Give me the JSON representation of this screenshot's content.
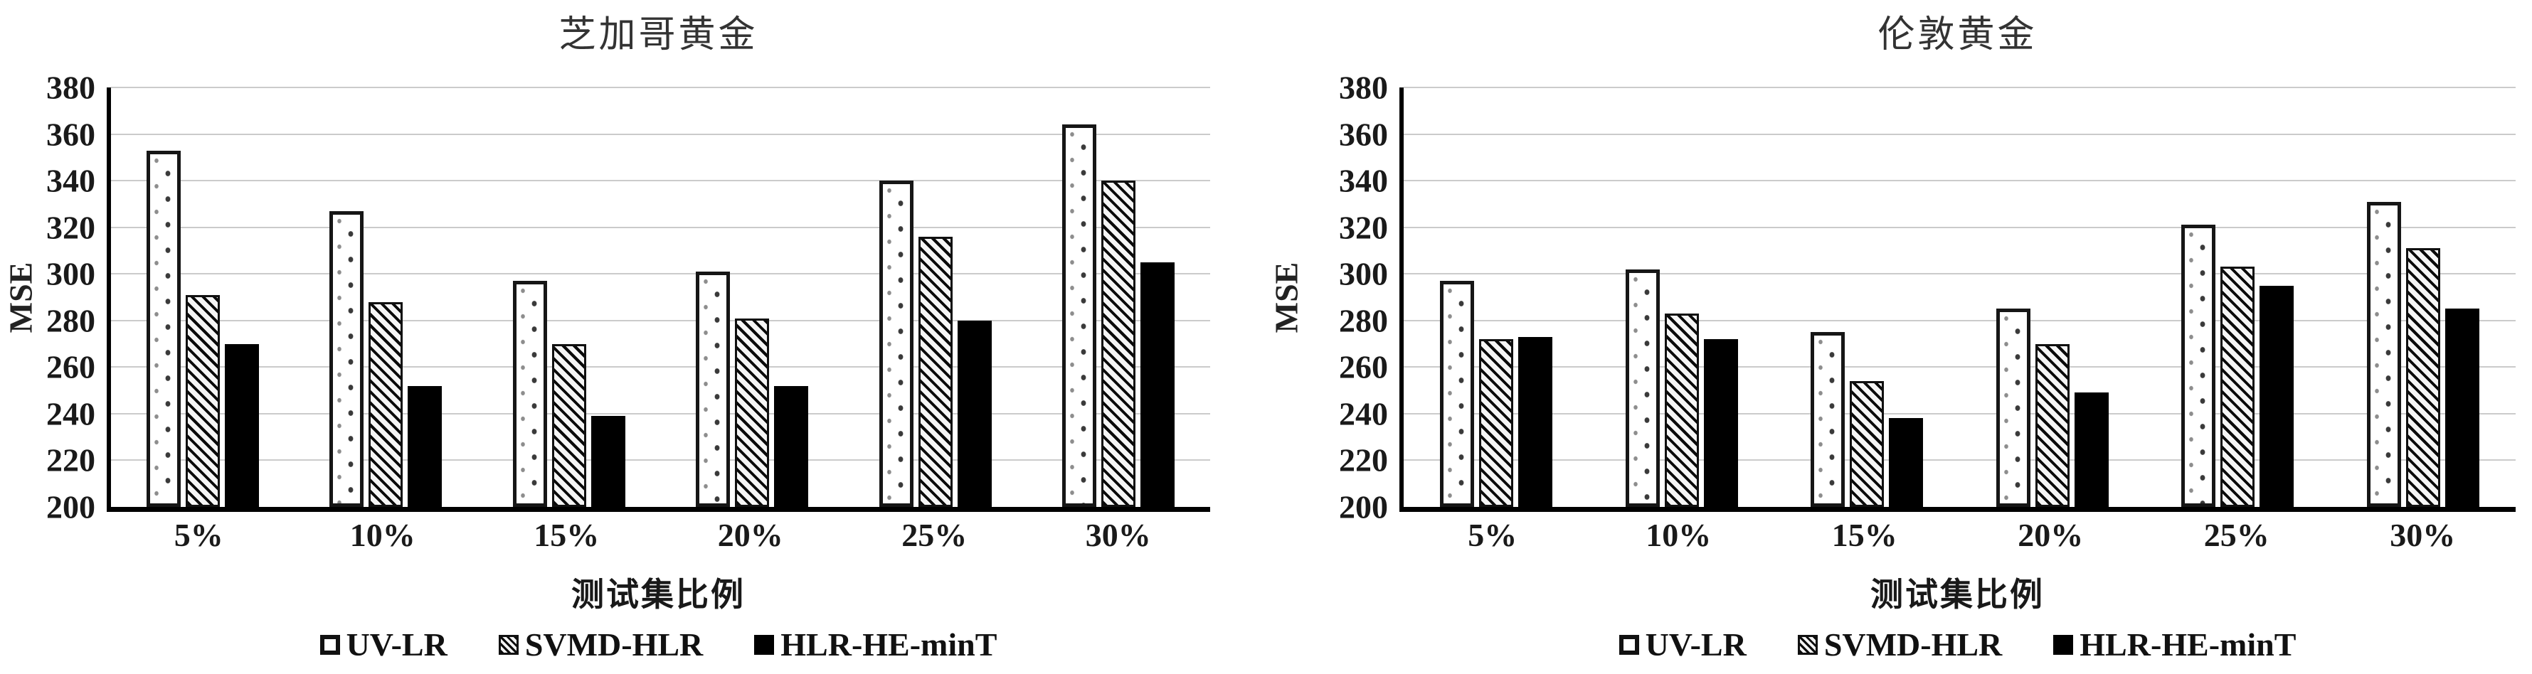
{
  "colors": {
    "background": "#ffffff",
    "axis": "#000000",
    "gridline": "#cbcbcb",
    "title_text": "#333333",
    "tick_text": "#1a1a1a",
    "bar_solid_fill": "#000000",
    "bar_white_fill": "#ffffff"
  },
  "chart_data": [
    {
      "type": "bar",
      "title": "芝加哥黄金",
      "ylabel": "MSE",
      "xlabel": "测试集比例",
      "ylim": [
        200,
        380
      ],
      "y_step": 20,
      "grid": true,
      "legend_position": "bottom",
      "y_ticks": [
        "380",
        "360",
        "340",
        "320",
        "300",
        "280",
        "260",
        "240",
        "220",
        "200"
      ],
      "categories": [
        "5%",
        "10%",
        "15%",
        "20%",
        "25%",
        "30%"
      ],
      "series": [
        {
          "name": "UV-LR",
          "pattern": "dots",
          "marker": "dotted-square-icon",
          "values": [
            353,
            327,
            297,
            301,
            340,
            364
          ]
        },
        {
          "name": "SVMD-HLR",
          "pattern": "hatch",
          "marker": "hatched-square-icon",
          "values": [
            291,
            288,
            270,
            281,
            316,
            340
          ]
        },
        {
          "name": "HLR-HE-minT",
          "pattern": "solid",
          "marker": "solid-black-square-icon",
          "values": [
            270,
            252,
            239,
            252,
            280,
            305
          ]
        }
      ]
    },
    {
      "type": "bar",
      "title": "伦敦黄金",
      "ylabel": "MSE",
      "xlabel": "测试集比例",
      "ylim": [
        200,
        380
      ],
      "y_step": 20,
      "grid": true,
      "legend_position": "bottom",
      "y_ticks": [
        "380",
        "360",
        "340",
        "320",
        "300",
        "280",
        "260",
        "240",
        "220",
        "200"
      ],
      "categories": [
        "5%",
        "10%",
        "15%",
        "20%",
        "25%",
        "30%"
      ],
      "series": [
        {
          "name": "UV-LR",
          "pattern": "dots",
          "marker": "dotted-square-icon",
          "values": [
            297,
            302,
            275,
            285,
            321,
            331
          ]
        },
        {
          "name": "SVMD-HLR",
          "pattern": "hatch",
          "marker": "hatched-square-icon",
          "values": [
            272,
            283,
            254,
            270,
            303,
            311
          ]
        },
        {
          "name": "HLR-HE-minT",
          "pattern": "solid",
          "marker": "solid-black-square-icon",
          "values": [
            273,
            272,
            238,
            249,
            295,
            285
          ]
        }
      ]
    }
  ]
}
